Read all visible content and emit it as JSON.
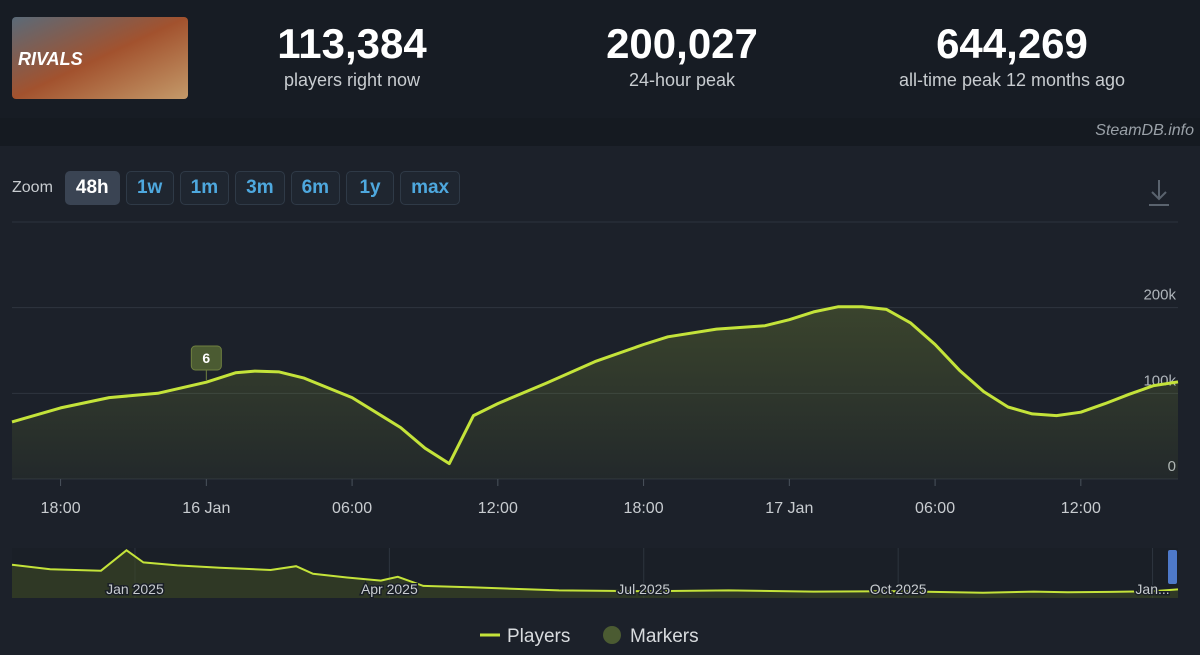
{
  "header": {
    "logo_text": "RIVALS",
    "stats": [
      {
        "value": "113,384",
        "label": "players right now"
      },
      {
        "value": "200,027",
        "label": "24-hour peak"
      },
      {
        "value": "644,269",
        "label": "all-time peak 12 months ago"
      }
    ],
    "source": "SteamDB.info"
  },
  "zoom": {
    "label": "Zoom",
    "buttons": [
      "48h",
      "1w",
      "1m",
      "3m",
      "6m",
      "1y",
      "max"
    ],
    "active": 0
  },
  "chart_data": [
    {
      "type": "line",
      "x": [
        -2,
        0,
        2,
        4,
        6,
        7.2,
        8,
        9,
        10,
        12,
        14,
        15,
        16,
        17,
        18,
        20,
        22,
        24,
        25,
        27,
        29,
        30,
        31,
        32,
        33,
        34,
        35,
        36,
        37,
        38,
        39,
        40,
        41,
        42,
        43,
        44,
        45,
        46
      ],
      "series": [
        {
          "name": "Players",
          "color": "#c4e33a",
          "values": [
            66700,
            83000,
            95000,
            100000,
            113000,
            124000,
            126000,
            125000,
            118000,
            95000,
            60000,
            36000,
            18000,
            74000,
            88000,
            112000,
            137000,
            157000,
            166000,
            175000,
            179000,
            186000,
            195000,
            201000,
            201000,
            198000,
            182000,
            157000,
            127000,
            102000,
            84000,
            76000,
            74000,
            78000,
            88000,
            99000,
            109000,
            113384
          ]
        }
      ],
      "xlim": [
        -2,
        46
      ],
      "xticks": [
        {
          "value": 0,
          "label": "18:00"
        },
        {
          "value": 6,
          "label": "16 Jan"
        },
        {
          "value": 12,
          "label": "06:00"
        },
        {
          "value": 18,
          "label": "12:00"
        },
        {
          "value": 24,
          "label": "18:00"
        },
        {
          "value": 30,
          "label": "17 Jan"
        },
        {
          "value": 36,
          "label": "06:00"
        },
        {
          "value": 42,
          "label": "12:00"
        }
      ],
      "ylim": [
        0,
        300000
      ],
      "yticks": [
        0,
        {
          "value": 100000,
          "label": "100k"
        },
        {
          "value": 200000,
          "label": "200k"
        }
      ],
      "grid": true,
      "markers": {
        "name": "Markers",
        "color": "#4b5b32",
        "points": [
          {
            "x": 6,
            "label": "6"
          }
        ]
      }
    },
    {
      "type": "area",
      "x": [
        -0.45,
        0,
        0.6,
        0.9,
        1.1,
        1.5,
        2,
        2.6,
        2.9,
        3.1,
        3.5,
        3.9,
        4.1,
        4.4,
        5,
        6,
        7,
        8,
        9,
        10,
        11,
        11.6,
        12,
        12.5,
        13,
        13.3
      ],
      "values": [
        440000,
        380000,
        360000,
        630000,
        470000,
        430000,
        400000,
        370000,
        420000,
        320000,
        270000,
        230000,
        280000,
        160000,
        140000,
        100000,
        90000,
        100000,
        85000,
        90000,
        70000,
        85000,
        75000,
        80000,
        90000,
        113384
      ],
      "color": "#c4e33a",
      "xlim": [
        -0.45,
        13.3
      ],
      "xticks": [
        {
          "value": 1,
          "label": "Jan 2025"
        },
        {
          "value": 4,
          "label": "Apr 2025"
        },
        {
          "value": 7,
          "label": "Jul 2025"
        },
        {
          "value": 10,
          "label": "Oct 2025"
        },
        {
          "value": 13,
          "label": "Jan..."
        }
      ],
      "ylim": [
        0,
        660000
      ]
    }
  ]
}
